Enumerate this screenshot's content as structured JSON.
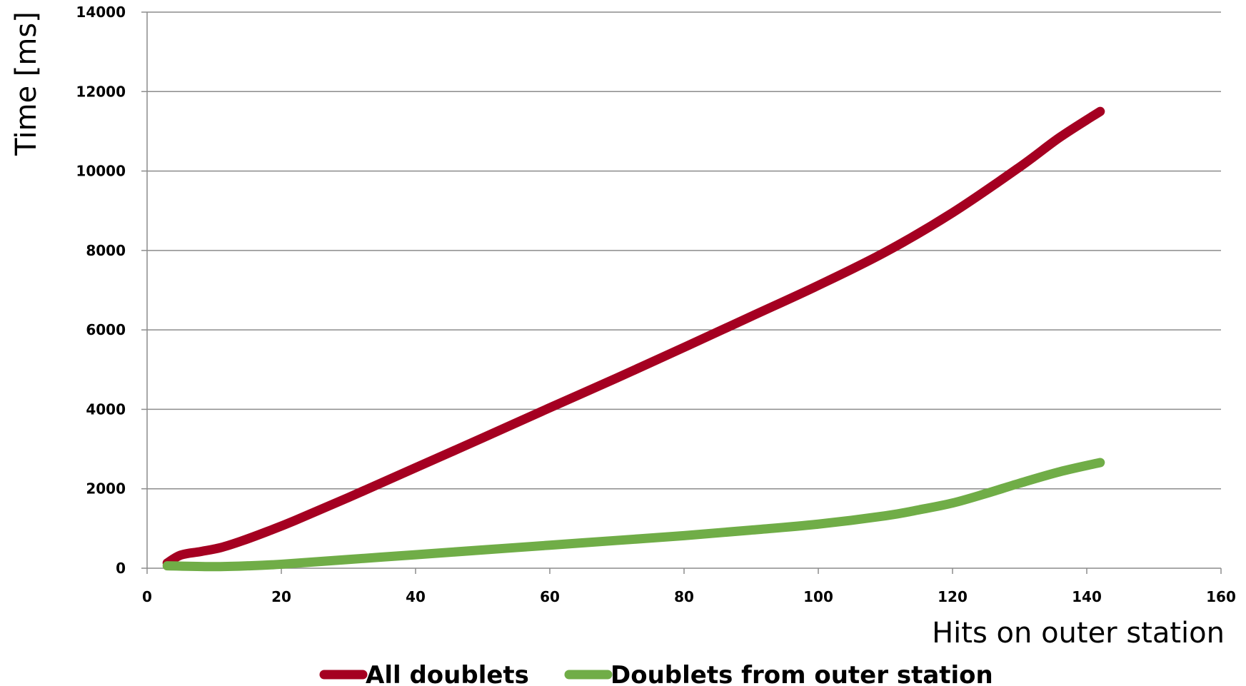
{
  "chart_data": {
    "type": "line",
    "title": "",
    "xlabel": "Hits on outer station",
    "ylabel": "Time [ms]",
    "xlim": [
      0,
      160
    ],
    "ylim": [
      0,
      14000
    ],
    "x_ticks": [
      0,
      20,
      40,
      60,
      80,
      100,
      120,
      140,
      160
    ],
    "y_ticks": [
      0,
      2000,
      4000,
      6000,
      8000,
      10000,
      12000,
      14000
    ],
    "grid": "horizontal",
    "legend": "bottom",
    "series": [
      {
        "name": "All doublets",
        "color": "#a50021",
        "x": [
          3,
          5,
          8,
          11,
          14,
          18,
          22,
          30,
          40,
          50,
          60,
          70,
          80,
          90,
          100,
          110,
          120,
          130,
          136,
          142
        ],
        "values": [
          130,
          330,
          420,
          520,
          680,
          930,
          1200,
          1780,
          2530,
          3280,
          4040,
          4790,
          5560,
          6340,
          7120,
          7960,
          8950,
          10100,
          10850,
          11500
        ]
      },
      {
        "name": "Doublets from outer station",
        "color": "#70ad47",
        "x": [
          3,
          10,
          15,
          20,
          30,
          40,
          50,
          60,
          70,
          80,
          90,
          100,
          110,
          115,
          120,
          125,
          130,
          136,
          142
        ],
        "values": [
          60,
          40,
          60,
          100,
          220,
          340,
          460,
          580,
          700,
          820,
          960,
          1110,
          1320,
          1470,
          1640,
          1880,
          2140,
          2430,
          2660
        ]
      }
    ]
  }
}
